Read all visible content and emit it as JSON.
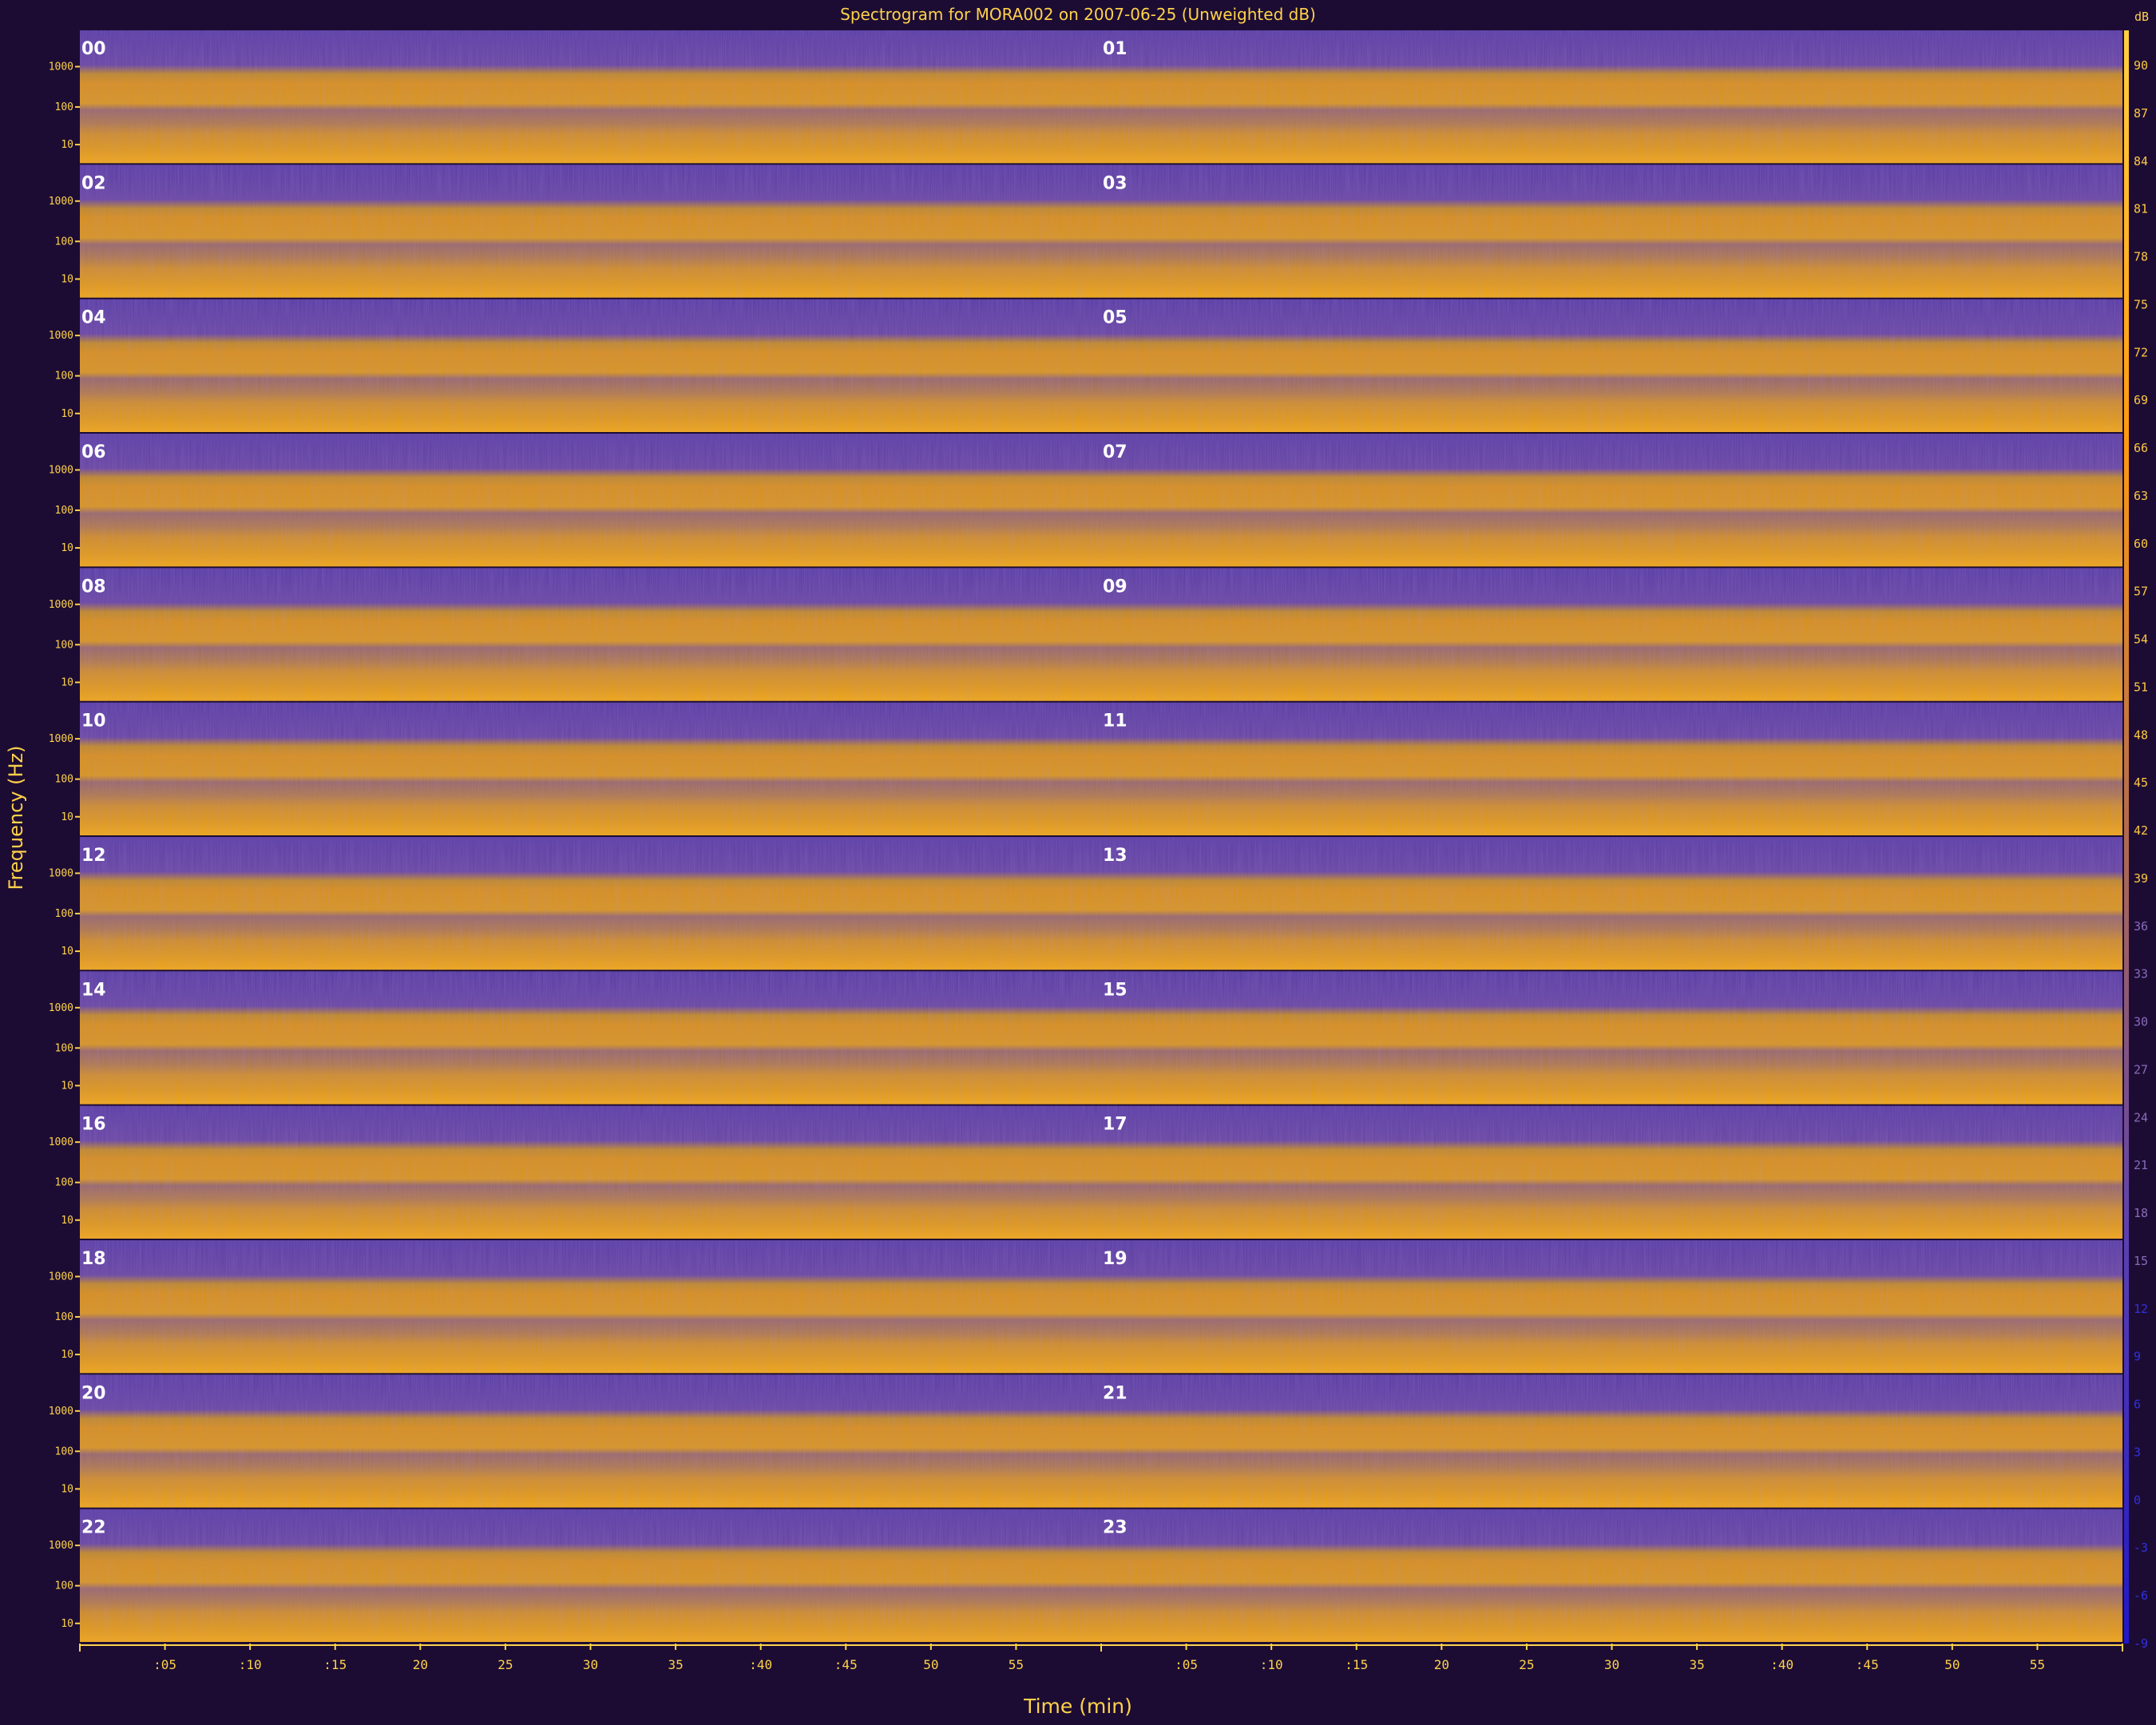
{
  "chart_data": {
    "type": "heatmap",
    "title": "Spectrogram for MORA002 on 2007-06-25 (Unweighted dB)",
    "xlabel": "Time (min)",
    "ylabel": "Frequency (Hz)",
    "hour_labels": [
      "00",
      "01",
      "02",
      "03",
      "04",
      "05",
      "06",
      "07",
      "08",
      "09",
      "10",
      "11",
      "12",
      "13",
      "14",
      "15",
      "16",
      "17",
      "18",
      "19",
      "20",
      "21",
      "22",
      "23"
    ],
    "hours_per_row": 2,
    "minutes_per_hour": 60,
    "frequency_ticks": [
      "1000",
      "100",
      "10"
    ],
    "time_ticks": [
      ":05",
      ":10",
      ":15",
      "20",
      "25",
      "30",
      "35",
      ":40",
      ":45",
      "50",
      "55"
    ],
    "time_tick_minutes": [
      5,
      10,
      15,
      20,
      25,
      30,
      35,
      40,
      45,
      50,
      55
    ],
    "colorbar": {
      "label": "dB",
      "ticks": [
        90,
        87,
        84,
        81,
        78,
        75,
        72,
        69,
        66,
        63,
        60,
        57,
        54,
        51,
        48,
        45,
        42,
        39,
        36,
        33,
        30,
        27,
        24,
        21,
        18,
        15,
        12,
        9,
        6,
        3,
        0,
        -3,
        -6,
        -9
      ],
      "range": [
        -9,
        93
      ],
      "colors": {
        "low": "#2a1aa8",
        "mid": "#6a4aa8",
        "high": "#ffaa10",
        "peak": "#ffd870"
      }
    },
    "colors": {
      "background": "#1c0c34",
      "band_low": "#5b3fa6",
      "band_high": "#d8901f",
      "text": "#ffd24a"
    }
  }
}
